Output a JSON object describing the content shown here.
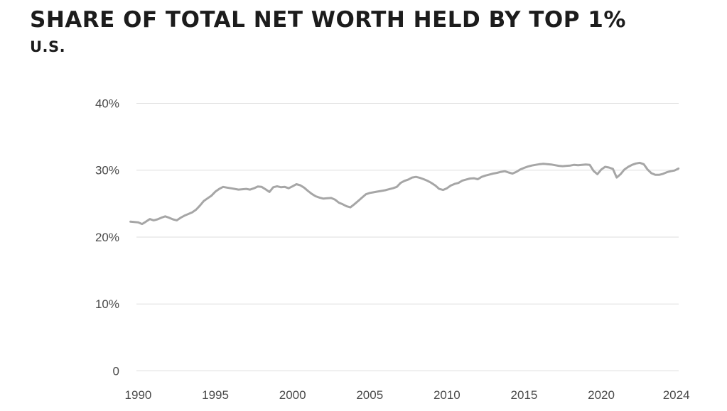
{
  "page": {
    "title": "SHARE OF TOTAL NET WORTH HELD BY TOP 1%",
    "subtitle": "U.S."
  },
  "colors": {
    "background": "#ffffff",
    "title_text": "#1c1c1c",
    "line": "#a6a6a6",
    "gridline": "#dddddd",
    "tick_label": "#4a4a4a"
  },
  "chart_data": {
    "type": "line",
    "title": "SHARE OF TOTAL NET WORTH HELD BY TOP 1%",
    "subtitle": "U.S.",
    "xlabel": "",
    "ylabel": "",
    "grid": "horizontal",
    "legend": "none",
    "xlim": [
      1989.5,
      2025.0
    ],
    "ylim": [
      0,
      40
    ],
    "x_ticks": [
      {
        "value": 1990,
        "label": "1990"
      },
      {
        "value": 1995,
        "label": "1995"
      },
      {
        "value": 2000,
        "label": "2000"
      },
      {
        "value": 2005,
        "label": "2005"
      },
      {
        "value": 2010,
        "label": "2010"
      },
      {
        "value": 2015,
        "label": "2015"
      },
      {
        "value": 2020,
        "label": "2020"
      },
      {
        "value": 2024,
        "label": "2024",
        "at_axis_end": true
      }
    ],
    "y_ticks": [
      {
        "value": 0,
        "label": "0"
      },
      {
        "value": 10,
        "label": "10%"
      },
      {
        "value": 20,
        "label": "20%"
      },
      {
        "value": 30,
        "label": "30%"
      },
      {
        "value": 40,
        "label": "40%"
      }
    ],
    "series": [
      {
        "name": "Share of total net worth held by top 1% (U.S., %)",
        "x_start": 1989.5,
        "x_step": 0.25,
        "values": [
          22.3,
          22.25,
          22.2,
          21.95,
          22.3,
          22.7,
          22.5,
          22.65,
          22.9,
          23.1,
          22.9,
          22.65,
          22.5,
          22.9,
          23.2,
          23.45,
          23.7,
          24.1,
          24.7,
          25.4,
          25.8,
          26.2,
          26.8,
          27.2,
          27.5,
          27.4,
          27.3,
          27.2,
          27.1,
          27.15,
          27.2,
          27.1,
          27.3,
          27.55,
          27.5,
          27.15,
          26.75,
          27.45,
          27.6,
          27.45,
          27.5,
          27.3,
          27.6,
          27.9,
          27.75,
          27.4,
          26.9,
          26.45,
          26.1,
          25.9,
          25.75,
          25.8,
          25.85,
          25.6,
          25.15,
          24.9,
          24.6,
          24.45,
          24.9,
          25.4,
          25.9,
          26.4,
          26.6,
          26.7,
          26.8,
          26.9,
          27.0,
          27.15,
          27.3,
          27.5,
          28.1,
          28.4,
          28.6,
          28.9,
          29.0,
          28.85,
          28.65,
          28.4,
          28.1,
          27.7,
          27.2,
          27.05,
          27.3,
          27.7,
          27.95,
          28.1,
          28.45,
          28.6,
          28.75,
          28.8,
          28.65,
          29.0,
          29.2,
          29.35,
          29.5,
          29.6,
          29.75,
          29.85,
          29.65,
          29.5,
          29.75,
          30.1,
          30.35,
          30.55,
          30.7,
          30.8,
          30.9,
          30.95,
          30.9,
          30.85,
          30.75,
          30.65,
          30.6,
          30.65,
          30.7,
          30.8,
          30.75,
          30.8,
          30.85,
          30.8,
          29.9,
          29.4,
          30.1,
          30.5,
          30.4,
          30.2,
          28.9,
          29.4,
          30.1,
          30.5,
          30.8,
          31.0,
          31.1,
          30.9,
          30.1,
          29.55,
          29.3,
          29.3,
          29.45,
          29.7,
          29.85,
          29.95,
          30.25
        ]
      }
    ]
  }
}
